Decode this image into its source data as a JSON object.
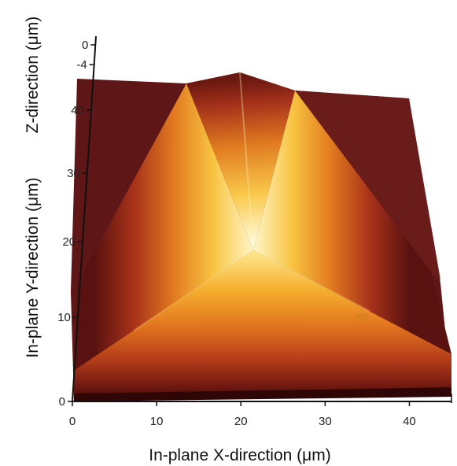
{
  "chart_data": {
    "type": "surface",
    "x_axis": {
      "label": "In-plane X-direction (μm)",
      "range": [
        0,
        45
      ],
      "ticks": [
        {
          "value": 0,
          "label": "0"
        },
        {
          "value": 10,
          "label": "10"
        },
        {
          "value": 20,
          "label": "20"
        },
        {
          "value": 30,
          "label": "30"
        },
        {
          "value": 40,
          "label": "40"
        }
      ]
    },
    "y_axis": {
      "label": "In-plane Y-direction (μm)",
      "range": [
        0,
        45
      ],
      "ticks": [
        {
          "value": 0,
          "label": "0"
        },
        {
          "value": 10,
          "label": "10"
        },
        {
          "value": 20,
          "label": "20"
        },
        {
          "value": 30,
          "label": "30"
        },
        {
          "value": 40,
          "label": "40"
        }
      ]
    },
    "z_axis": {
      "label": "Z-direction (μm)",
      "ticks": [
        {
          "value": 0,
          "label": "0"
        },
        {
          "value": -4,
          "label": "-4"
        }
      ]
    },
    "surface": {
      "shape": "pyramidal pit, apex near x≈21, y≈20",
      "colormap": [
        "#3a0a0a",
        "#6e1a10",
        "#a8321a",
        "#d9641e",
        "#f1a228",
        "#fbe27a",
        "#ffffe6"
      ]
    }
  }
}
